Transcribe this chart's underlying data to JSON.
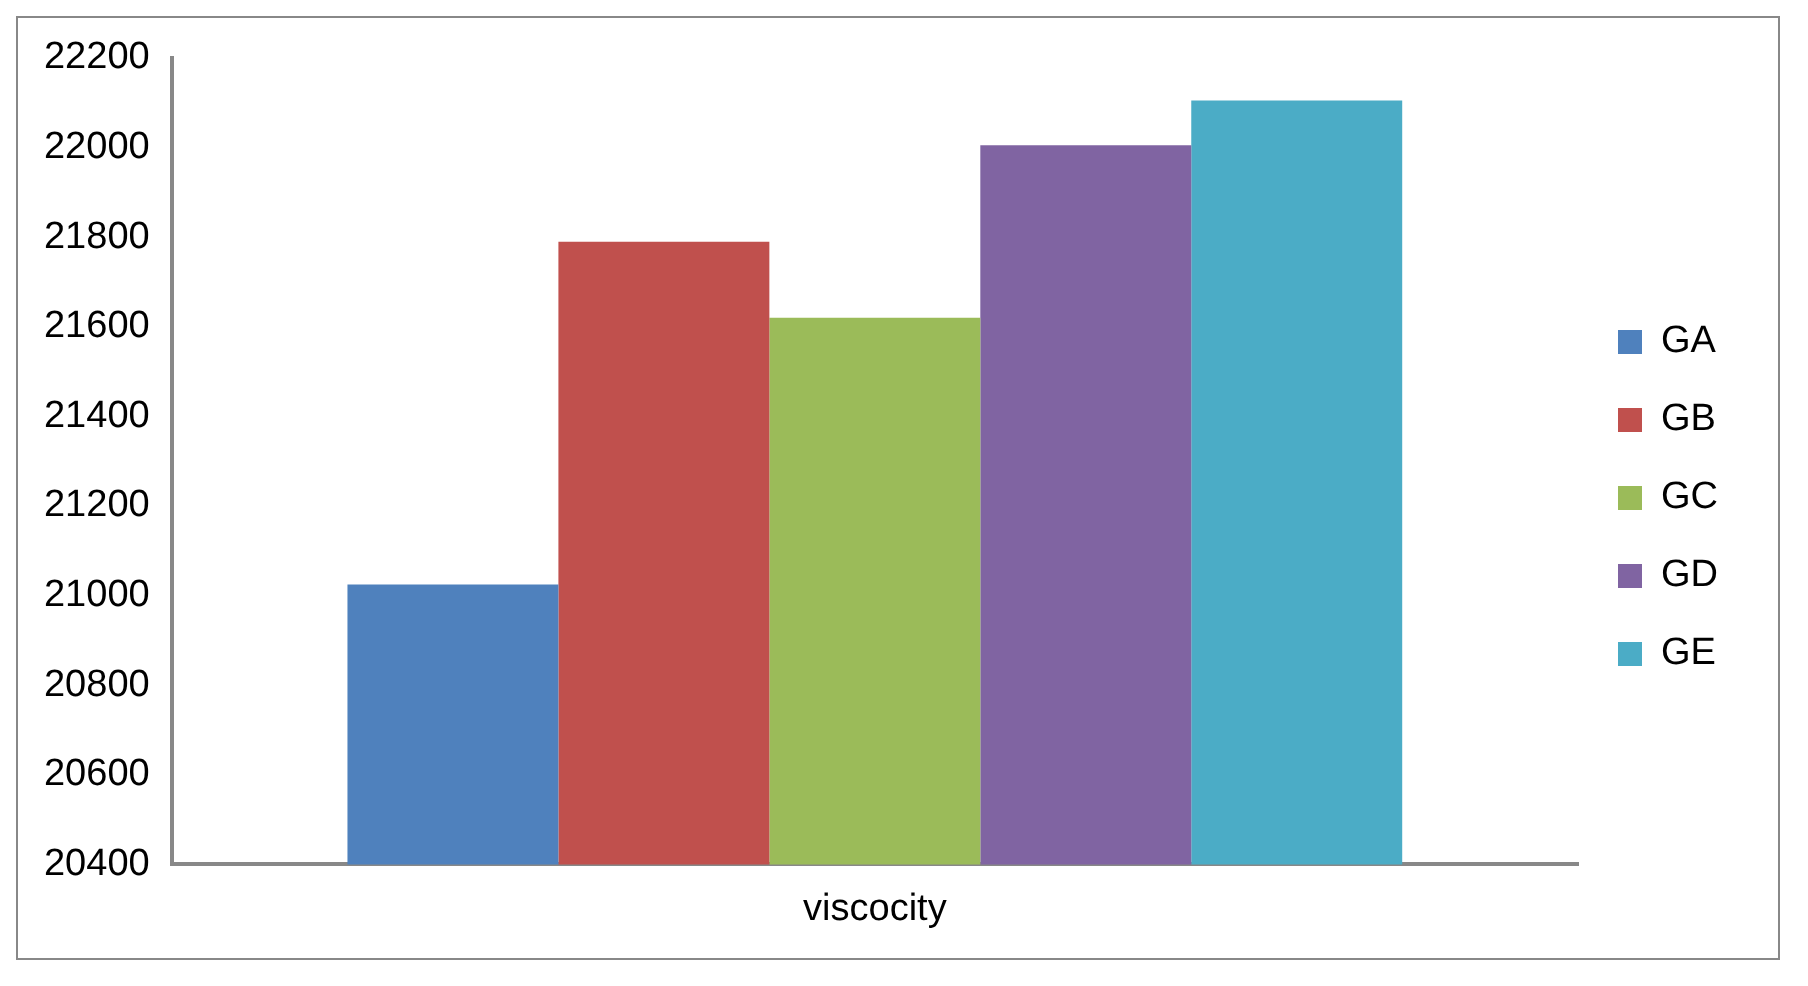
{
  "chart_data": {
    "type": "bar",
    "categories": [
      "viscocity"
    ],
    "series": [
      {
        "name": "GA",
        "color": "#4f81bd",
        "values": [
          21025
        ]
      },
      {
        "name": "GB",
        "color": "#c0504d",
        "values": [
          21790
        ]
      },
      {
        "name": "GC",
        "color": "#9bbb59",
        "values": [
          21620
        ]
      },
      {
        "name": "GD",
        "color": "#8064a2",
        "values": [
          22005
        ]
      },
      {
        "name": "GE",
        "color": "#4bacc6",
        "values": [
          22105
        ]
      }
    ],
    "ylim": [
      20400,
      22200
    ],
    "yticks": [
      20400,
      20600,
      20800,
      21000,
      21200,
      21400,
      21600,
      21800,
      22000,
      22200
    ],
    "grid": false,
    "legend": "right"
  }
}
